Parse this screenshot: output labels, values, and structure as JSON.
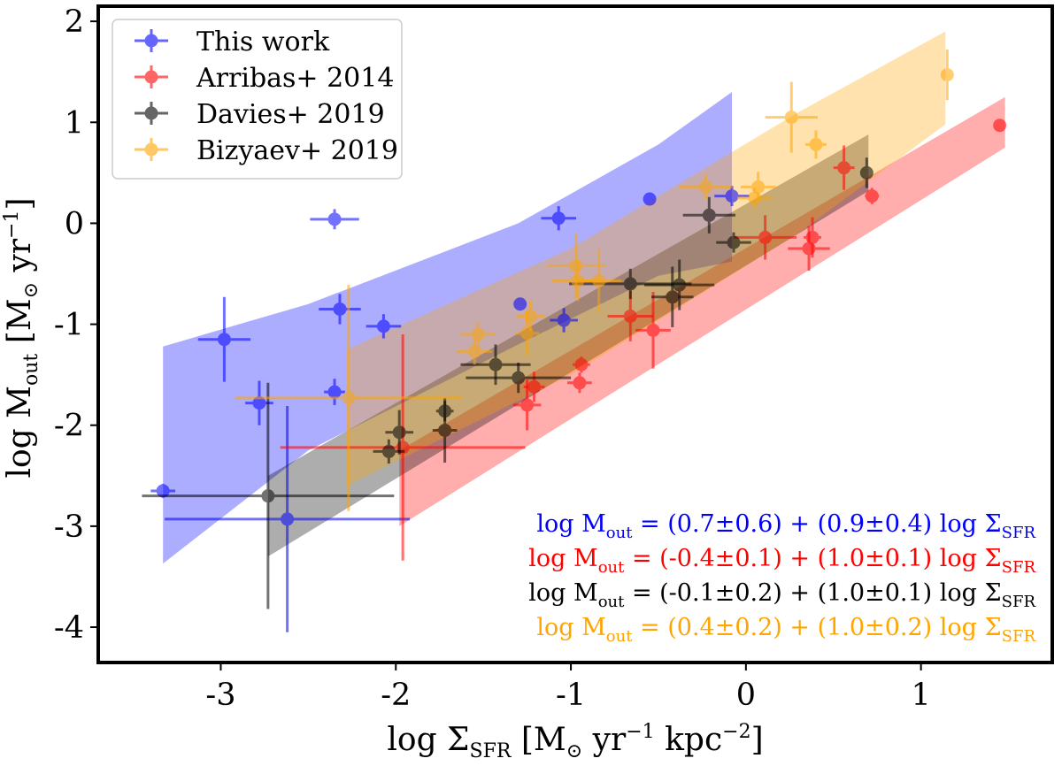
{
  "chart_data": {
    "type": "scatter",
    "xlabel": "log Σ",
    "xlabel_sub": "SFR",
    "xlabel_unit": "[M",
    "xlabel_unit_rest": "yr",
    "xlabel_unit_rest2": "kpc",
    "ylabel": "log M",
    "ylabel_sub": "out",
    "ylabel_unit": "[M",
    "ylabel_unit_rest": "yr",
    "xlim": [
      -3.7,
      1.75
    ],
    "ylim": [
      -4.35,
      2.15
    ],
    "xticks": [
      -3,
      -2,
      -1,
      0,
      1
    ],
    "xtick_labels": [
      "-3",
      "-2",
      "-1",
      "0",
      "1"
    ],
    "yticks": [
      -4,
      -3,
      -2,
      -1,
      0,
      1,
      2
    ],
    "ytick_labels": [
      "-4",
      "-3",
      "-2",
      "-1",
      "0",
      "1",
      "2"
    ],
    "legend_position": "top-left",
    "series": [
      {
        "name": "This work",
        "color": "#0000ff",
        "band": {
          "x": [
            -3.33,
            -2.5,
            -1.3,
            -0.5,
            -0.08
          ],
          "lo": [
            -3.37,
            -2.25,
            -1.2,
            -0.52,
            -0.38
          ],
          "hi": [
            -1.22,
            -0.8,
            0.0,
            0.78,
            1.3
          ]
        },
        "points": [
          {
            "x": -3.33,
            "y": -2.65,
            "xerr": 0.07,
            "yerr": 0.07
          },
          {
            "x": -2.98,
            "y": -1.15,
            "xerr": 0.15,
            "yerr": 0.42
          },
          {
            "x": -2.78,
            "y": -1.78,
            "xerr": 0.08,
            "yerr": 0.22
          },
          {
            "x": -2.35,
            "y": 0.04,
            "xerr": 0.14,
            "yerr": 0.1
          },
          {
            "x": -2.32,
            "y": -0.85,
            "xerr": 0.12,
            "yerr": 0.15
          },
          {
            "x": -2.35,
            "y": -1.67,
            "xerr": 0.06,
            "yerr": 0.13
          },
          {
            "x": -2.07,
            "y": -1.02,
            "xerr": 0.1,
            "yerr": 0.12
          },
          {
            "x": -2.62,
            "y": -2.93,
            "xerr": 0.7,
            "yerr": 1.12
          },
          {
            "x": -1.29,
            "y": -0.8,
            "xerr": 0.03,
            "yerr": 0.03
          },
          {
            "x": -1.04,
            "y": -0.96,
            "xerr": 0.08,
            "yerr": 0.12
          },
          {
            "x": -1.07,
            "y": 0.05,
            "xerr": 0.1,
            "yerr": 0.12
          },
          {
            "x": -0.55,
            "y": 0.24,
            "xerr": 0.02,
            "yerr": 0.02
          },
          {
            "x": -0.08,
            "y": 0.27,
            "xerr": 0.1,
            "yerr": 0.1
          }
        ]
      },
      {
        "name": "Arribas+ 2014",
        "color": "#ff0000",
        "band": {
          "x": [
            -1.98,
            1.48
          ],
          "lo": [
            -3.0,
            0.75
          ],
          "hi": [
            -2.25,
            1.25
          ]
        },
        "points": [
          {
            "x": -1.96,
            "y": -2.22,
            "xerr": 0.7,
            "yerr": 1.12
          },
          {
            "x": -1.21,
            "y": -1.62,
            "xerr": 0.06,
            "yerr": 0.15
          },
          {
            "x": -1.25,
            "y": -1.8,
            "xerr": 0.08,
            "yerr": 0.25
          },
          {
            "x": -0.94,
            "y": -1.4,
            "xerr": 0.05,
            "yerr": 0.08
          },
          {
            "x": -0.95,
            "y": -1.58,
            "xerr": 0.07,
            "yerr": 0.1
          },
          {
            "x": -0.66,
            "y": -0.92,
            "xerr": 0.13,
            "yerr": 0.25
          },
          {
            "x": -0.53,
            "y": -1.06,
            "xerr": 0.1,
            "yerr": 0.38
          },
          {
            "x": 0.11,
            "y": -0.14,
            "xerr": 0.18,
            "yerr": 0.22
          },
          {
            "x": 0.38,
            "y": -0.14,
            "xerr": 0.05,
            "yerr": 0.2
          },
          {
            "x": 0.36,
            "y": -0.25,
            "xerr": 0.12,
            "yerr": 0.22
          },
          {
            "x": 0.56,
            "y": 0.55,
            "xerr": 0.06,
            "yerr": 0.22
          },
          {
            "x": 0.72,
            "y": 0.27,
            "xerr": 0.04,
            "yerr": 0.08
          },
          {
            "x": 1.45,
            "y": 0.97,
            "xerr": 0.02,
            "yerr": 0.05
          }
        ]
      },
      {
        "name": "Davies+ 2019",
        "color": "#000000",
        "band": {
          "x": [
            -2.73,
            0.7
          ],
          "lo": [
            -3.3,
            0.32
          ],
          "hi": [
            -2.5,
            0.88
          ]
        },
        "points": [
          {
            "x": -2.73,
            "y": -2.7,
            "xerr": 0.72,
            "yerr": 1.12
          },
          {
            "x": -2.04,
            "y": -2.26,
            "xerr": 0.09,
            "yerr": 0.12
          },
          {
            "x": -1.98,
            "y": -2.07,
            "xerr": 0.08,
            "yerr": 0.22
          },
          {
            "x": -1.72,
            "y": -1.86,
            "xerr": 0.05,
            "yerr": 0.1
          },
          {
            "x": -1.72,
            "y": -2.05,
            "xerr": 0.07,
            "yerr": 0.32
          },
          {
            "x": -1.43,
            "y": -1.4,
            "xerr": 0.2,
            "yerr": 0.2
          },
          {
            "x": -1.3,
            "y": -1.53,
            "xerr": 0.3,
            "yerr": 0.15
          },
          {
            "x": -0.66,
            "y": -0.6,
            "xerr": 0.35,
            "yerr": 0.15
          },
          {
            "x": -0.42,
            "y": -0.73,
            "xerr": 0.12,
            "yerr": 0.3
          },
          {
            "x": -0.38,
            "y": -0.61,
            "xerr": 0.2,
            "yerr": 0.25
          },
          {
            "x": -0.21,
            "y": 0.08,
            "xerr": 0.15,
            "yerr": 0.18
          },
          {
            "x": -0.07,
            "y": -0.19,
            "xerr": 0.1,
            "yerr": 0.1
          },
          {
            "x": 0.69,
            "y": 0.5,
            "xerr": 0.03,
            "yerr": 0.15
          }
        ]
      },
      {
        "name": "Bizyaev+ 2019",
        "color": "#ffa500",
        "band": {
          "x": [
            -2.28,
            -1.0,
            0.3,
            1.14
          ],
          "lo": [
            -2.6,
            -1.5,
            -0.1,
            0.98
          ],
          "hi": [
            -1.25,
            -0.25,
            1.1,
            1.9
          ]
        },
        "points": [
          {
            "x": -2.27,
            "y": -1.73,
            "xerr": 0.65,
            "yerr": 1.12
          },
          {
            "x": -1.55,
            "y": -1.27,
            "xerr": 0.1,
            "yerr": 0.13
          },
          {
            "x": -1.53,
            "y": -1.1,
            "xerr": 0.1,
            "yerr": 0.12
          },
          {
            "x": -1.25,
            "y": -1.09,
            "xerr": 0.07,
            "yerr": 0.22
          },
          {
            "x": -1.23,
            "y": -0.92,
            "xerr": 0.08,
            "yerr": 0.15
          },
          {
            "x": -0.97,
            "y": -0.42,
            "xerr": 0.17,
            "yerr": 0.32
          },
          {
            "x": -0.96,
            "y": -0.57,
            "xerr": 0.15,
            "yerr": 0.2
          },
          {
            "x": -0.84,
            "y": -0.57,
            "xerr": 0.13,
            "yerr": 0.32
          },
          {
            "x": -0.23,
            "y": 0.36,
            "xerr": 0.15,
            "yerr": 0.12
          },
          {
            "x": 0.07,
            "y": 0.36,
            "xerr": 0.1,
            "yerr": 0.15
          },
          {
            "x": 0.05,
            "y": 0.25,
            "xerr": 0.1,
            "yerr": 0.1
          },
          {
            "x": 0.26,
            "y": 1.05,
            "xerr": 0.15,
            "yerr": 0.35
          },
          {
            "x": 0.4,
            "y": 0.78,
            "xerr": 0.06,
            "yerr": 0.14
          },
          {
            "x": 1.15,
            "y": 1.47,
            "xerr": 0.02,
            "yerr": 0.25
          }
        ]
      }
    ],
    "annotations": [
      {
        "color": "#0000ff",
        "parts": [
          "log M",
          "out",
          " = (0.7±0.6) + (0.9±0.4) log Σ",
          "SFR"
        ]
      },
      {
        "color": "#ff0000",
        "parts": [
          "log M",
          "out",
          " = (-0.4±0.1) + (1.0±0.1) log Σ",
          "SFR"
        ]
      },
      {
        "color": "#000000",
        "parts": [
          "log M",
          "out",
          " = (-0.1±0.2) + (1.0±0.1) log Σ",
          "SFR"
        ]
      },
      {
        "color": "#ffa500",
        "parts": [
          "log M",
          "out",
          " = (0.4±0.2) + (1.0±0.2) log Σ",
          "SFR"
        ]
      }
    ]
  }
}
